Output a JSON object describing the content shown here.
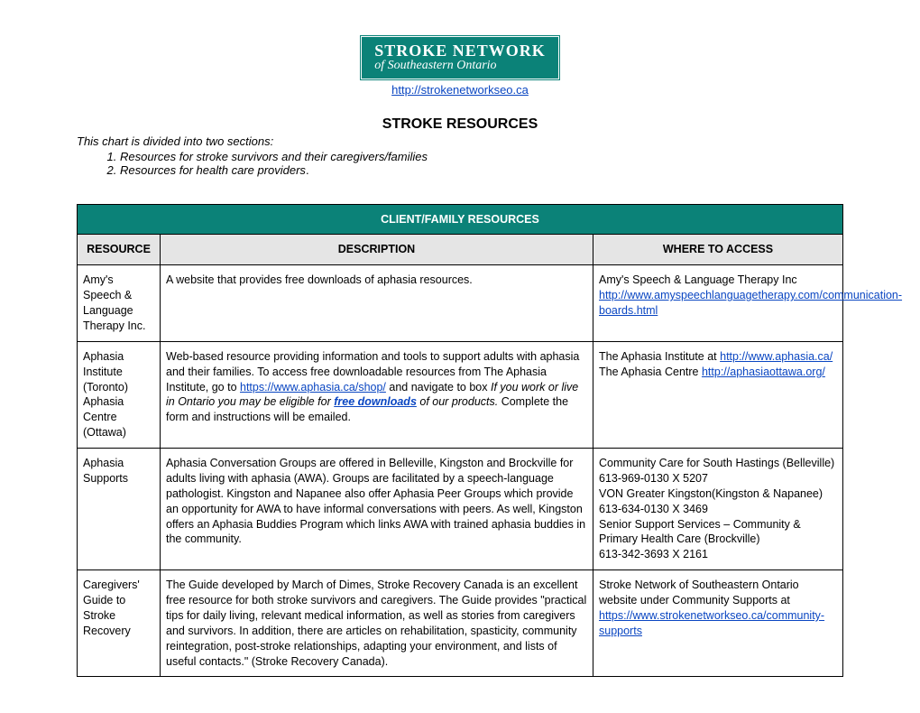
{
  "logo": {
    "line1": "STROKE NETWORK",
    "line2": "of Southeastern Ontario",
    "bg_color": "#0b8278",
    "text_color": "#ffffff"
  },
  "site_link": {
    "text": "http://strokenetworkseo.ca",
    "color": "#0a46c2"
  },
  "main_title": "STROKE RESOURCES",
  "intro_line": "This chart is divided into two sections:",
  "intro_list": {
    "item1": "Resources for stroke survivors and their caregivers/families",
    "item2_italic": "Resources for health care providers",
    "item2_plain": "."
  },
  "section_header": "CLIENT/FAMILY RESOURCES",
  "columns": {
    "resource": "RESOURCE",
    "description": "DESCRIPTION",
    "access": "WHERE TO ACCESS"
  },
  "rows": {
    "r1": {
      "resource": "Amy's Speech & Language Therapy Inc.",
      "description": "A website that provides free downloads of aphasia resources.",
      "access_pre": "Amy's Speech & Language Therapy Inc",
      "access_link": "http://www.amyspeechlanguagetherapy.com/communication-boards.html"
    },
    "r2": {
      "resource": "Aphasia Institute (Toronto)\nAphasia Centre (Ottawa)",
      "desc_pre": "Web-based resource providing information and tools to support adults with aphasia and their families.  To access free downloadable resources from The Aphasia Institute, go to  ",
      "desc_link1": "https://www.aphasia.ca/shop/",
      "desc_mid1": " and navigate to box  ",
      "desc_italic": "If you work or live in Ontario you may be eligible for ",
      "desc_link2": "free downloads",
      "desc_italic2": " of our products.",
      "desc_post": " Complete the form and instructions will be emailed.",
      "access_pre1": "The Aphasia Institute at ",
      "access_link1": "http://www.aphasia.ca/",
      "access_pre2": "The Aphasia Centre ",
      "access_link2": "http://aphasiaottawa.org/"
    },
    "r3": {
      "resource": "Aphasia Supports",
      "description": "Aphasia Conversation Groups are offered in Belleville, Kingston and Brockville for adults living with aphasia (AWA).  Groups are facilitated by a speech-language pathologist.  Kingston and Napanee also offer Aphasia Peer Groups which provide an opportunity for AWA to have informal conversations with peers.  As well, Kingston offers an Aphasia Buddies Program which links AWA with trained aphasia buddies in the community.",
      "access": "Community Care for South Hastings (Belleville)\n613-969-0130  X 5207\nVON Greater Kingston(Kingston & Napanee)\n613-634-0130 X 3469\nSenior Support Services – Community & Primary Health Care (Brockville)\n613-342-3693 X 2161"
    },
    "r4": {
      "resource": "Caregivers' Guide to Stroke Recovery",
      "description": "The Guide developed by March of Dimes, Stroke Recovery Canada is an excellent free resource for both stroke survivors and caregivers.  The Guide provides \"practical tips for daily living, relevant medical information, as well as stories from caregivers and survivors. In addition, there are articles on rehabilitation, spasticity, community reintegration, post-stroke relationships, adapting your environment, and lists of useful contacts.\" (Stroke Recovery Canada).",
      "access_pre": "Stroke Network of Southeastern Ontario website under Community Supports at",
      "access_link": "https://www.strokenetworkseo.ca/community-supports"
    }
  }
}
